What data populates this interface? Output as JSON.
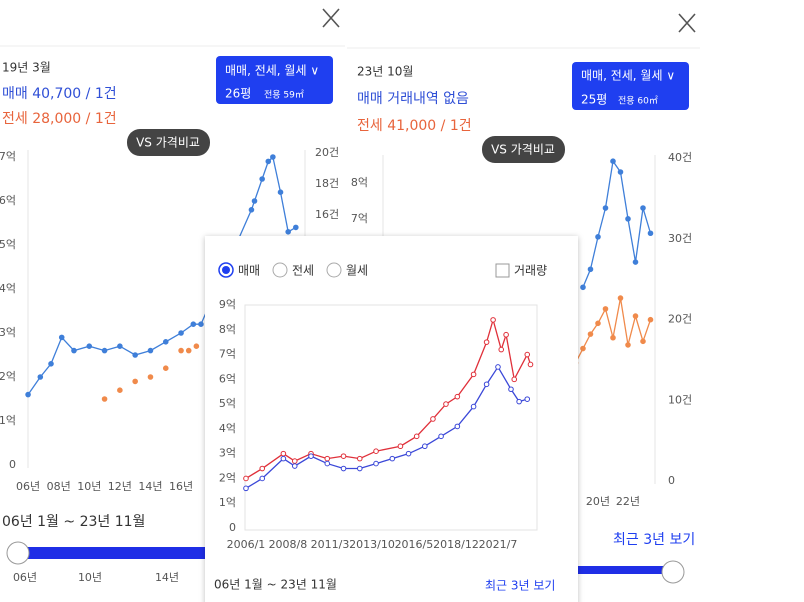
{
  "left_panel": {
    "date": "19년 3월",
    "sale": "매매 40,700 / 1건",
    "jeonse": "전세 28,000 / 1건",
    "filter": "매매, 전세, 월세 ∨",
    "size": "26평",
    "area": "전용 59㎡",
    "compare": "VS 가격비교",
    "range": "06년 1월 ~ 23년 11월",
    "slider_labels": [
      "06년",
      "10년",
      "14년"
    ],
    "chart": {
      "type": "line",
      "xlim": [
        2004.95,
        2024.1
      ],
      "ylim": [
        0,
        7
      ],
      "yticks": [
        0,
        {
          "value": 1,
          "label": "1억"
        },
        {
          "value": 2,
          "label": "2억"
        },
        {
          "value": 3,
          "label": "3억"
        },
        {
          "value": 4,
          "label": "4억"
        },
        {
          "value": 5,
          "label": "5억"
        },
        {
          "value": 6,
          "label": "6억"
        },
        {
          "value": 7,
          "label": "7억"
        }
      ],
      "xticks": [
        {
          "value": 2006,
          "label": "06년"
        },
        {
          "value": 2008,
          "label": "08년"
        },
        {
          "value": 2010,
          "label": "10년"
        },
        {
          "value": 2012,
          "label": "12년"
        },
        {
          "value": 2014,
          "label": "14년"
        },
        {
          "value": 2016,
          "label": "16년"
        }
      ],
      "y2lim": [
        0,
        20
      ],
      "y2ticks": [
        {
          "value": 16,
          "label": "16건"
        },
        {
          "value": 18,
          "label": "18건"
        },
        {
          "value": 20,
          "label": "20건"
        }
      ],
      "series": [
        {
          "color": "#3f7fd9",
          "mode": "lines+markers",
          "x": [
            2006,
            2006.8,
            2007.5,
            2008.2,
            2009,
            2010,
            2011,
            2012,
            2013,
            2014,
            2015,
            2016,
            2016.8,
            2017.3,
            2020.6,
            2020.8,
            2021.3,
            2021.7,
            2022,
            2022.5,
            2023,
            2023.5
          ],
          "values": [
            1.6,
            2.0,
            2.3,
            2.9,
            2.6,
            2.7,
            2.6,
            2.7,
            2.5,
            2.6,
            2.8,
            3.0,
            3.2,
            3.2,
            5.8,
            6.0,
            6.5,
            6.9,
            7.0,
            6.2,
            5.3,
            5.4
          ]
        },
        {
          "color": "#f08a4b",
          "mode": "markers",
          "x": [
            2011,
            2012,
            2013,
            2014,
            2015,
            2016,
            2016.5,
            2017
          ],
          "values": [
            1.5,
            1.7,
            1.9,
            2.0,
            2.2,
            2.6,
            2.6,
            2.7
          ]
        }
      ]
    }
  },
  "right_panel": {
    "date": "23년 10월",
    "sale": "매매 거래내역 없음",
    "jeonse": "전세 41,000 / 1건",
    "filter": "매매, 전세, 월세 ∨",
    "size": "25평",
    "area": "전용 60㎡",
    "compare": "VS 가격비교",
    "recent": "최근 3년 보기",
    "chart": {
      "type": "line",
      "xlim": [
        2005.47,
        2023.8
      ],
      "ylim": [
        0,
        8.8
      ],
      "yticks": [
        {
          "value": 7,
          "label": "7억"
        },
        {
          "value": 8,
          "label": "8억"
        }
      ],
      "xticks": [
        {
          "value": 2020,
          "label": "20년"
        },
        {
          "value": 2022,
          "label": "22년"
        }
      ],
      "y2lim": [
        0,
        40
      ],
      "y2ticks": [
        0,
        {
          "value": 10,
          "label": "10건"
        },
        {
          "value": 20,
          "label": "20건"
        },
        {
          "value": 30,
          "label": "30건"
        },
        {
          "value": 40,
          "label": "40건"
        }
      ],
      "series": [
        {
          "color": "#3f7fd9",
          "mode": "lines+markers",
          "x": [
            2019,
            2019.5,
            2020,
            2020.5,
            2021,
            2021.5,
            2022,
            2022.5,
            2023,
            2023.5
          ],
          "values": [
            5.1,
            5.6,
            6.5,
            7.3,
            8.6,
            8.3,
            7.0,
            5.8,
            7.3,
            6.6
          ]
        },
        {
          "color": "#f08a4b",
          "mode": "lines+markers",
          "x": [
            2018.5,
            2019,
            2019.5,
            2020,
            2020.5,
            2021,
            2021.5,
            2022,
            2022.5,
            2023,
            2023.5
          ],
          "values": [
            3.0,
            3.4,
            3.8,
            4.1,
            4.5,
            3.7,
            4.8,
            3.5,
            4.3,
            3.6,
            4.2
          ]
        }
      ]
    }
  },
  "popup": {
    "options": [
      "매매",
      "전세",
      "월세"
    ],
    "volume": "거래량",
    "range": "06년 1월 ~ 23년 11월",
    "recent": "최근 3년 보기",
    "chart": {
      "type": "line",
      "xlim": [
        2005.94,
        2023.9
      ],
      "ylim": [
        0,
        9
      ],
      "yticks": [
        0,
        {
          "value": 1,
          "label": "1억"
        },
        {
          "value": 2,
          "label": "2억"
        },
        {
          "value": 3,
          "label": "3억"
        },
        {
          "value": 4,
          "label": "4억"
        },
        {
          "value": 5,
          "label": "5억"
        },
        {
          "value": 6,
          "label": "6억"
        },
        {
          "value": 7,
          "label": "7억"
        },
        {
          "value": 8,
          "label": "8억"
        },
        {
          "value": 9,
          "label": "9억"
        }
      ],
      "xticks": [
        {
          "value": 2006,
          "label": "2006/1"
        },
        {
          "value": 2008.58,
          "label": "2008/8"
        },
        {
          "value": 2011.17,
          "label": "2011/3"
        },
        {
          "value": 2013.75,
          "label": "2013/10"
        },
        {
          "value": 2016.33,
          "label": "2016/5"
        },
        {
          "value": 2018.92,
          "label": "2018/12"
        },
        {
          "value": 2021.5,
          "label": "2021/7"
        }
      ],
      "series": [
        {
          "color": "#e0303a",
          "mode": "lines+markers",
          "x": [
            2006,
            2007,
            2008.3,
            2009,
            2010,
            2011,
            2012,
            2013,
            2014,
            2015.5,
            2016.5,
            2017.5,
            2018.3,
            2019,
            2020,
            2020.8,
            2021.2,
            2021.7,
            2022,
            2022.5,
            2023.3,
            2023.5
          ],
          "values": [
            2.0,
            2.4,
            3.0,
            2.7,
            3.0,
            2.8,
            2.9,
            2.8,
            3.1,
            3.3,
            3.7,
            4.4,
            5.0,
            5.3,
            6.2,
            7.5,
            8.4,
            7.2,
            7.8,
            6.0,
            7.0,
            6.6
          ]
        },
        {
          "color": "#3b48d8",
          "mode": "lines+markers",
          "x": [
            2006,
            2007,
            2008.3,
            2009,
            2010,
            2011,
            2012,
            2013,
            2014,
            2015,
            2016,
            2017,
            2018,
            2019,
            2020,
            2020.8,
            2021.5,
            2022.3,
            2022.8,
            2023.3
          ],
          "values": [
            1.6,
            2.0,
            2.8,
            2.5,
            2.9,
            2.6,
            2.4,
            2.4,
            2.6,
            2.8,
            3.0,
            3.3,
            3.7,
            4.1,
            4.9,
            5.8,
            6.5,
            5.6,
            5.1,
            5.2
          ]
        }
      ]
    }
  }
}
